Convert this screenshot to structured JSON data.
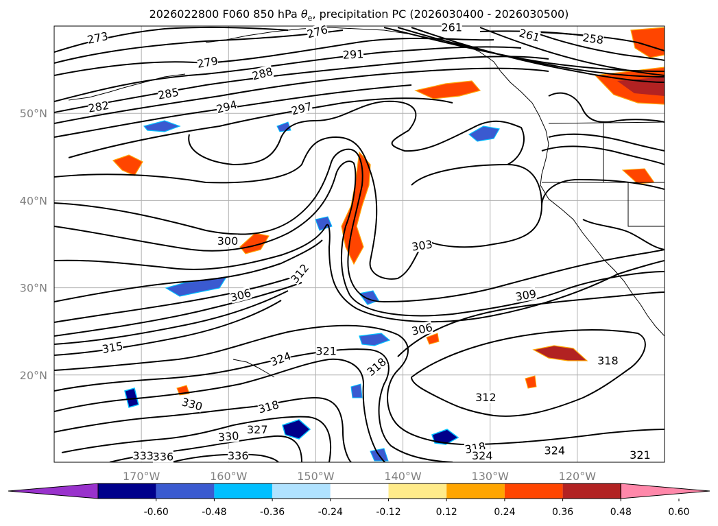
{
  "title": {
    "prefix": "2026022800 F060 850 hPa ",
    "theta": "θ",
    "sub": "e",
    "suffix": ", precipitation PC (2026030400 - 2026030500)"
  },
  "chart_data": {
    "type": "map",
    "projection": "plate-carree",
    "lon_range": [
      -180,
      -110
    ],
    "lat_range": [
      10,
      60
    ],
    "grid": true,
    "lon_ticks": [
      {
        "value": -170,
        "label": "170°W"
      },
      {
        "value": -160,
        "label": "160°W"
      },
      {
        "value": -150,
        "label": "150°W"
      },
      {
        "value": -140,
        "label": "140°W"
      },
      {
        "value": -130,
        "label": "130°W"
      },
      {
        "value": -120,
        "label": "120°W"
      }
    ],
    "lat_ticks": [
      {
        "value": 20,
        "label": "20°N"
      },
      {
        "value": 30,
        "label": "30°N"
      },
      {
        "value": 40,
        "label": "40°N"
      },
      {
        "value": 50,
        "label": "50°N"
      }
    ],
    "contour_labels": [
      {
        "text": "273",
        "lon": -175.0,
        "lat": 58.6,
        "rot": -12
      },
      {
        "text": "276",
        "lon": -149.8,
        "lat": 59.3,
        "rot": -15
      },
      {
        "text": "279",
        "lon": -162.4,
        "lat": 55.8,
        "rot": -10
      },
      {
        "text": "288",
        "lon": -156.1,
        "lat": 54.5,
        "rot": -15
      },
      {
        "text": "291",
        "lon": -145.7,
        "lat": 56.7,
        "rot": -3
      },
      {
        "text": "261",
        "lon": -134.4,
        "lat": 59.8,
        "rot": 0
      },
      {
        "text": "261",
        "lon": -125.5,
        "lat": 58.9,
        "rot": 15
      },
      {
        "text": "258",
        "lon": -118.2,
        "lat": 58.5,
        "rot": 8
      },
      {
        "text": "285",
        "lon": -166.9,
        "lat": 52.2,
        "rot": -10
      },
      {
        "text": "282",
        "lon": -174.9,
        "lat": 50.7,
        "rot": -10
      },
      {
        "text": "294",
        "lon": -160.2,
        "lat": 50.7,
        "rot": -15
      },
      {
        "text": "297",
        "lon": -151.6,
        "lat": 50.5,
        "rot": -15
      },
      {
        "text": "300",
        "lon": -160.1,
        "lat": 35.3,
        "rot": 0
      },
      {
        "text": "312",
        "lon": -151.8,
        "lat": 31.6,
        "rot": -50
      },
      {
        "text": "306",
        "lon": -158.6,
        "lat": 29.1,
        "rot": -15
      },
      {
        "text": "303",
        "lon": -137.8,
        "lat": 34.8,
        "rot": -8
      },
      {
        "text": "309",
        "lon": -125.9,
        "lat": 29.1,
        "rot": -10
      },
      {
        "text": "306",
        "lon": -137.8,
        "lat": 25.2,
        "rot": -12
      },
      {
        "text": "315",
        "lon": -173.3,
        "lat": 23.1,
        "rot": -10
      },
      {
        "text": "324",
        "lon": -154.0,
        "lat": 21.8,
        "rot": -20
      },
      {
        "text": "321",
        "lon": -148.8,
        "lat": 22.7,
        "rot": 0
      },
      {
        "text": "318",
        "lon": -143.0,
        "lat": 20.9,
        "rot": -40
      },
      {
        "text": "318",
        "lon": -116.5,
        "lat": 21.6,
        "rot": 0
      },
      {
        "text": "312",
        "lon": -130.5,
        "lat": 17.4,
        "rot": 0
      },
      {
        "text": "330",
        "lon": -164.2,
        "lat": 16.6,
        "rot": 15
      },
      {
        "text": "318",
        "lon": -155.4,
        "lat": 16.3,
        "rot": -15
      },
      {
        "text": "327",
        "lon": -156.7,
        "lat": 13.7,
        "rot": 0
      },
      {
        "text": "330",
        "lon": -160.0,
        "lat": 12.9,
        "rot": -5
      },
      {
        "text": "333",
        "lon": -169.8,
        "lat": 10.7,
        "rot": 0
      },
      {
        "text": "336",
        "lon": -167.5,
        "lat": 10.6,
        "rot": 0
      },
      {
        "text": "336",
        "lon": -158.9,
        "lat": 10.7,
        "rot": 0
      },
      {
        "text": "318",
        "lon": -131.7,
        "lat": 11.6,
        "rot": -10
      },
      {
        "text": "324",
        "lon": -130.9,
        "lat": 10.7,
        "rot": 0
      },
      {
        "text": "324",
        "lon": -122.6,
        "lat": 11.3,
        "rot": 0
      },
      {
        "text": "321",
        "lon": -112.8,
        "lat": 10.8,
        "rot": 0
      }
    ],
    "colorbar": {
      "ticks": [
        "-0.60",
        "-0.48",
        "-0.36",
        "-0.24",
        "-0.12",
        "0.12",
        "0.24",
        "0.36",
        "0.48",
        "0.60"
      ],
      "colors": [
        "#9932cc",
        "#00008b",
        "#3a5ad0",
        "#00bfff",
        "#b0e2ff",
        "#ffffff",
        "#ffeb8a",
        "#ffa500",
        "#ff4500",
        "#b22222",
        "#ff88aa"
      ]
    },
    "theme": {
      "axis_color": "#000000",
      "tick_color": "#808080",
      "grid_color": "#b0b0b0"
    }
  }
}
